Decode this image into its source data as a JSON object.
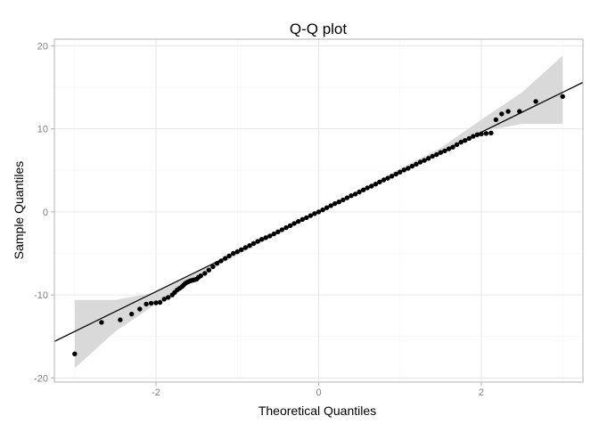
{
  "chart_data": {
    "type": "scatter",
    "title": "Q-Q plot",
    "xlabel": "Theoretical Quantiles",
    "ylabel": "Sample Quantiles",
    "xlim": [
      -3.25,
      3.25
    ],
    "ylim": [
      -20.5,
      20.8
    ],
    "x_ticks": [
      -2,
      0,
      2
    ],
    "x_tick_labels": [
      "-2",
      "0",
      "2"
    ],
    "y_ticks": [
      -20,
      -10,
      0,
      10,
      20
    ],
    "y_tick_labels": [
      "-20",
      "-10",
      "0",
      "10",
      "20"
    ],
    "grid": true,
    "legend": "none",
    "colors": {
      "points": "#000000",
      "reference_line": "#000000",
      "confidence_band": "#d9d9d9",
      "grid_major": "#e6e6e6",
      "grid_minor": "#f3f3f3",
      "panel_border": "#b3b3b3"
    },
    "reference_line": {
      "intercept": 0,
      "slope": 4.8
    },
    "confidence_band": {
      "x": [
        -3.0,
        -2.5,
        -2.0,
        -1.5,
        -1.0,
        -0.5,
        0.0,
        0.5,
        1.0,
        1.5,
        2.0,
        2.5,
        3.0
      ],
      "lower": [
        -18.8,
        -14.4,
        -11.1,
        -7.7,
        -5.2,
        -2.6,
        -0.15,
        2.3,
        4.7,
        7.3,
        9.7,
        10.6,
        10.6
      ],
      "upper": [
        -10.6,
        -10.6,
        -9.7,
        -7.3,
        -4.7,
        -2.3,
        0.15,
        2.6,
        5.2,
        7.7,
        11.1,
        14.4,
        18.8
      ]
    },
    "series": [
      {
        "points": [
          [
            -3.0,
            -17.1
          ],
          [
            -2.67,
            -13.3
          ],
          [
            -2.44,
            -13.0
          ],
          [
            -2.3,
            -12.3
          ],
          [
            -2.2,
            -11.7
          ],
          [
            -2.12,
            -11.1
          ],
          [
            -2.06,
            -11.0
          ],
          [
            -2.0,
            -10.95
          ],
          [
            -1.95,
            -10.9
          ],
          [
            -1.9,
            -10.5
          ],
          [
            -1.85,
            -10.3
          ],
          [
            -1.8,
            -10.0
          ],
          [
            -1.77,
            -9.7
          ],
          [
            -1.74,
            -9.4
          ],
          [
            -1.71,
            -9.2
          ],
          [
            -1.68,
            -9.0
          ],
          [
            -1.66,
            -8.8
          ],
          [
            -1.64,
            -8.6
          ],
          [
            -1.62,
            -8.5
          ],
          [
            -1.6,
            -8.4
          ],
          [
            -1.58,
            -8.3
          ],
          [
            -1.56,
            -8.25
          ],
          [
            -1.54,
            -8.2
          ],
          [
            -1.52,
            -8.15
          ],
          [
            -1.5,
            -8.1
          ],
          [
            -1.48,
            -7.9
          ],
          [
            -1.45,
            -7.7
          ],
          [
            -1.4,
            -7.4
          ],
          [
            -1.35,
            -7.0
          ],
          [
            -1.3,
            -6.6
          ],
          [
            -1.25,
            -6.2
          ],
          [
            -1.2,
            -5.9
          ],
          [
            -1.15,
            -5.6
          ],
          [
            -1.1,
            -5.3
          ],
          [
            -1.05,
            -5.0
          ],
          [
            -1.0,
            -4.8
          ],
          [
            -0.95,
            -4.55
          ],
          [
            -0.9,
            -4.3
          ],
          [
            -0.85,
            -4.05
          ],
          [
            -0.8,
            -3.8
          ],
          [
            -0.75,
            -3.55
          ],
          [
            -0.7,
            -3.3
          ],
          [
            -0.65,
            -3.1
          ],
          [
            -0.6,
            -2.9
          ],
          [
            -0.55,
            -2.65
          ],
          [
            -0.5,
            -2.4
          ],
          [
            -0.45,
            -2.15
          ],
          [
            -0.4,
            -1.9
          ],
          [
            -0.35,
            -1.65
          ],
          [
            -0.3,
            -1.4
          ],
          [
            -0.25,
            -1.15
          ],
          [
            -0.2,
            -0.9
          ],
          [
            -0.15,
            -0.7
          ],
          [
            -0.1,
            -0.45
          ],
          [
            -0.05,
            -0.2
          ],
          [
            0.0,
            0.0
          ],
          [
            0.05,
            0.25
          ],
          [
            0.1,
            0.5
          ],
          [
            0.15,
            0.75
          ],
          [
            0.2,
            1.0
          ],
          [
            0.25,
            1.2
          ],
          [
            0.3,
            1.45
          ],
          [
            0.35,
            1.7
          ],
          [
            0.4,
            1.95
          ],
          [
            0.45,
            2.15
          ],
          [
            0.5,
            2.4
          ],
          [
            0.55,
            2.65
          ],
          [
            0.6,
            2.9
          ],
          [
            0.65,
            3.1
          ],
          [
            0.7,
            3.35
          ],
          [
            0.75,
            3.6
          ],
          [
            0.8,
            3.85
          ],
          [
            0.85,
            4.05
          ],
          [
            0.9,
            4.3
          ],
          [
            0.95,
            4.55
          ],
          [
            1.0,
            4.8
          ],
          [
            1.05,
            5.05
          ],
          [
            1.1,
            5.25
          ],
          [
            1.15,
            5.5
          ],
          [
            1.2,
            5.75
          ],
          [
            1.25,
            6.0
          ],
          [
            1.3,
            6.2
          ],
          [
            1.35,
            6.45
          ],
          [
            1.4,
            6.7
          ],
          [
            1.45,
            6.9
          ],
          [
            1.5,
            7.15
          ],
          [
            1.55,
            7.35
          ],
          [
            1.6,
            7.6
          ],
          [
            1.65,
            7.8
          ],
          [
            1.7,
            8.1
          ],
          [
            1.75,
            8.4
          ],
          [
            1.8,
            8.6
          ],
          [
            1.85,
            8.85
          ],
          [
            1.9,
            9.1
          ],
          [
            1.95,
            9.3
          ],
          [
            2.0,
            9.4
          ],
          [
            2.06,
            9.45
          ],
          [
            2.12,
            9.5
          ],
          [
            2.18,
            11.1
          ],
          [
            2.25,
            11.8
          ],
          [
            2.33,
            12.1
          ],
          [
            2.47,
            12.1
          ],
          [
            2.67,
            13.3
          ],
          [
            3.0,
            13.9
          ]
        ]
      }
    ]
  }
}
